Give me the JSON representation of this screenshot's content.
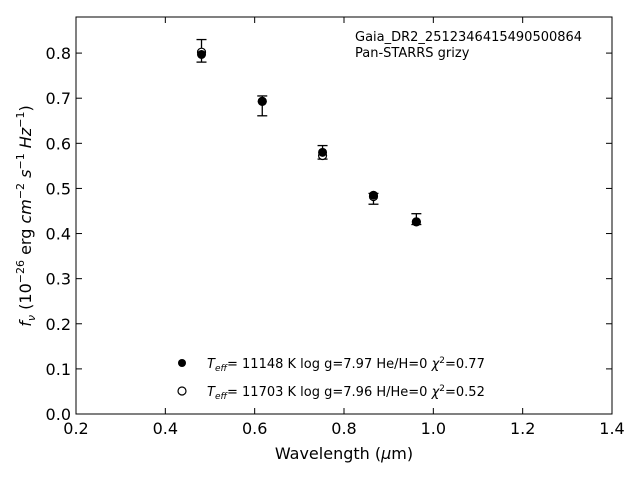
{
  "chart_data": {
    "type": "scatter",
    "annotation_lines": [
      "Gaia_DR2_2512346415490500864",
      "Pan-STARRS grizy"
    ],
    "xlim": [
      0.2,
      1.4
    ],
    "ylim": [
      0.0,
      0.88
    ],
    "xticks": [
      "0.2",
      "0.4",
      "0.6",
      "0.8",
      "1.0",
      "1.2",
      "1.4"
    ],
    "yticks": [
      "0.0",
      "0.1",
      "0.2",
      "0.3",
      "0.4",
      "0.5",
      "0.6",
      "0.7",
      "0.8"
    ],
    "xlabel": "Wavelength (μm)",
    "ylabel": "f_ν (10^-26 erg cm^-2 s^-1 Hz^-1)",
    "grid": false,
    "legend_position": "bottom-center",
    "observed": {
      "x": [
        0.481,
        0.617,
        0.752,
        0.866,
        0.962
      ],
      "y": [
        0.805,
        0.683,
        0.58,
        0.477,
        0.432
      ],
      "err": [
        0.025,
        0.022,
        0.015,
        0.012,
        0.012
      ]
    },
    "series": [
      {
        "marker": "filled-circle",
        "legend": "T_eff= 11148 K  log g=7.97  He/H=0  χ²=0.77",
        "x": [
          0.481,
          0.617,
          0.752,
          0.866,
          0.962
        ],
        "y": [
          0.797,
          0.693,
          0.58,
          0.485,
          0.426
        ]
      },
      {
        "marker": "open-circle",
        "legend": "T_eff= 11703 K  log g=7.96  H/He=0  χ²=0.52",
        "x": [
          0.481,
          0.617,
          0.752,
          0.866,
          0.962
        ],
        "y": [
          0.802,
          0.693,
          0.573,
          0.482,
          0.426
        ]
      }
    ]
  }
}
